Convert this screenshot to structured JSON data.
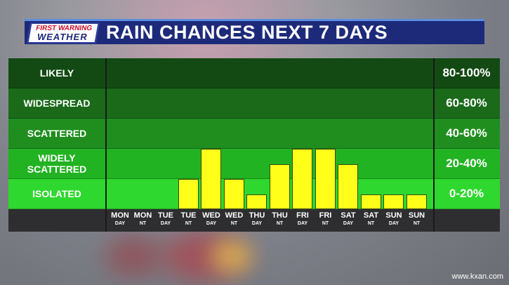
{
  "header": {
    "logo_line1": "FIRST WARNING",
    "logo_line2": "WEATHER",
    "title": "RAIN CHANCES NEXT 7 DAYS"
  },
  "colors": {
    "likely": "#134a13",
    "widespread": "#1a6a1a",
    "scattered": "#1f8e1f",
    "widely_scattered": "#22b322",
    "isolated": "#2ed82e",
    "bar": "#ffff1a"
  },
  "chart_data": {
    "type": "bar",
    "categories": [
      "MON DAY",
      "MON NT",
      "TUE DAY",
      "TUE NT",
      "WED DAY",
      "WED NT",
      "THU DAY",
      "THU NT",
      "FRI DAY",
      "FRI NT",
      "SAT DAY",
      "SAT NT",
      "SUN DAY",
      "SUN NT"
    ],
    "day_labels": [
      [
        "MON",
        "DAY"
      ],
      [
        "MON",
        "NT"
      ],
      [
        "TUE",
        "DAY"
      ],
      [
        "TUE",
        "NT"
      ],
      [
        "WED",
        "DAY"
      ],
      [
        "WED",
        "NT"
      ],
      [
        "THU",
        "DAY"
      ],
      [
        "THU",
        "NT"
      ],
      [
        "FRI",
        "DAY"
      ],
      [
        "FRI",
        "NT"
      ],
      [
        "SAT",
        "DAY"
      ],
      [
        "SAT",
        "NT"
      ],
      [
        "SUN",
        "DAY"
      ],
      [
        "SUN",
        "NT"
      ]
    ],
    "values": [
      0,
      0,
      0,
      20,
      40,
      20,
      10,
      30,
      40,
      40,
      30,
      10,
      10,
      10
    ],
    "ylim": [
      0,
      100
    ],
    "bands": [
      {
        "label": "LIKELY",
        "range": "80-100%"
      },
      {
        "label": "WIDESPREAD",
        "range": "60-80%"
      },
      {
        "label": "SCATTERED",
        "range": "40-60%"
      },
      {
        "label": "WIDELY SCATTERED",
        "range": "20-40%"
      },
      {
        "label": "ISOLATED",
        "range": "0-20%"
      }
    ]
  },
  "footer": {
    "url": "www.kxan.com"
  }
}
